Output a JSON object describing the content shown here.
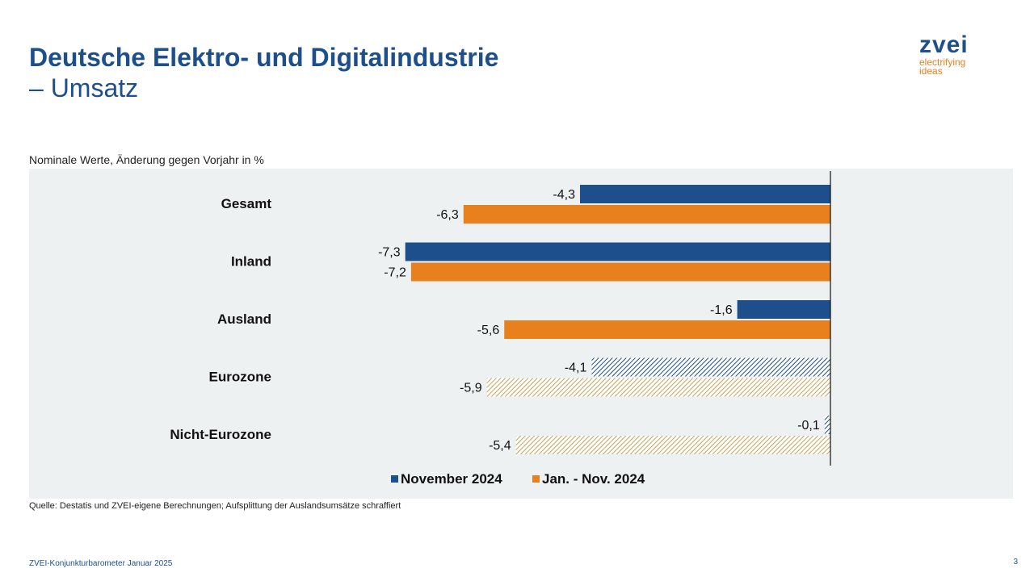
{
  "header": {
    "title_line1": "Deutsche Elektro- und Digitalindustrie",
    "title_line2": "– Umsatz"
  },
  "logo": {
    "mark": "zvei",
    "tagline_1": "electrifying",
    "tagline_2": "ideas"
  },
  "subtitle": "Nominale Werte, Änderung gegen Vorjahr in %",
  "source": "Quelle: Destatis und ZVEI-eigene Berechnungen; Aufsplittung der Auslandsumsätze schraffiert",
  "footer": {
    "text": "ZVEI-Konjunkturbarometer Januar 2025",
    "page": "3"
  },
  "colors": {
    "blue": "#1d4f8c",
    "orange": "#e8801e",
    "hatch_blue": "#1d4f8c",
    "hatch_gold": "#c9a25a",
    "panel": "#eef1f2"
  },
  "chart_data": {
    "type": "bar",
    "orientation": "horizontal",
    "categories": [
      "Gesamt",
      "Inland",
      "Ausland",
      "Eurozone",
      "Nicht-Eurozone"
    ],
    "hatched_categories": [
      "Eurozone",
      "Nicht-Eurozone"
    ],
    "series": [
      {
        "name": "November 2024",
        "values": [
          -4.3,
          -7.3,
          -1.6,
          -4.1,
          -0.1
        ],
        "labels": [
          "-4,3",
          "-7,3",
          "-1,6",
          "-4,1",
          "-0,1"
        ]
      },
      {
        "name": "Jan. - Nov. 2024",
        "values": [
          -6.3,
          -7.2,
          -5.6,
          -5.9,
          -5.4
        ],
        "labels": [
          "-6,3",
          "-7,2",
          "-5,6",
          "-5,9",
          "-5,4"
        ]
      }
    ],
    "xlim": [
      -7.6,
      0
    ],
    "legend_position": "bottom",
    "grid": false
  }
}
